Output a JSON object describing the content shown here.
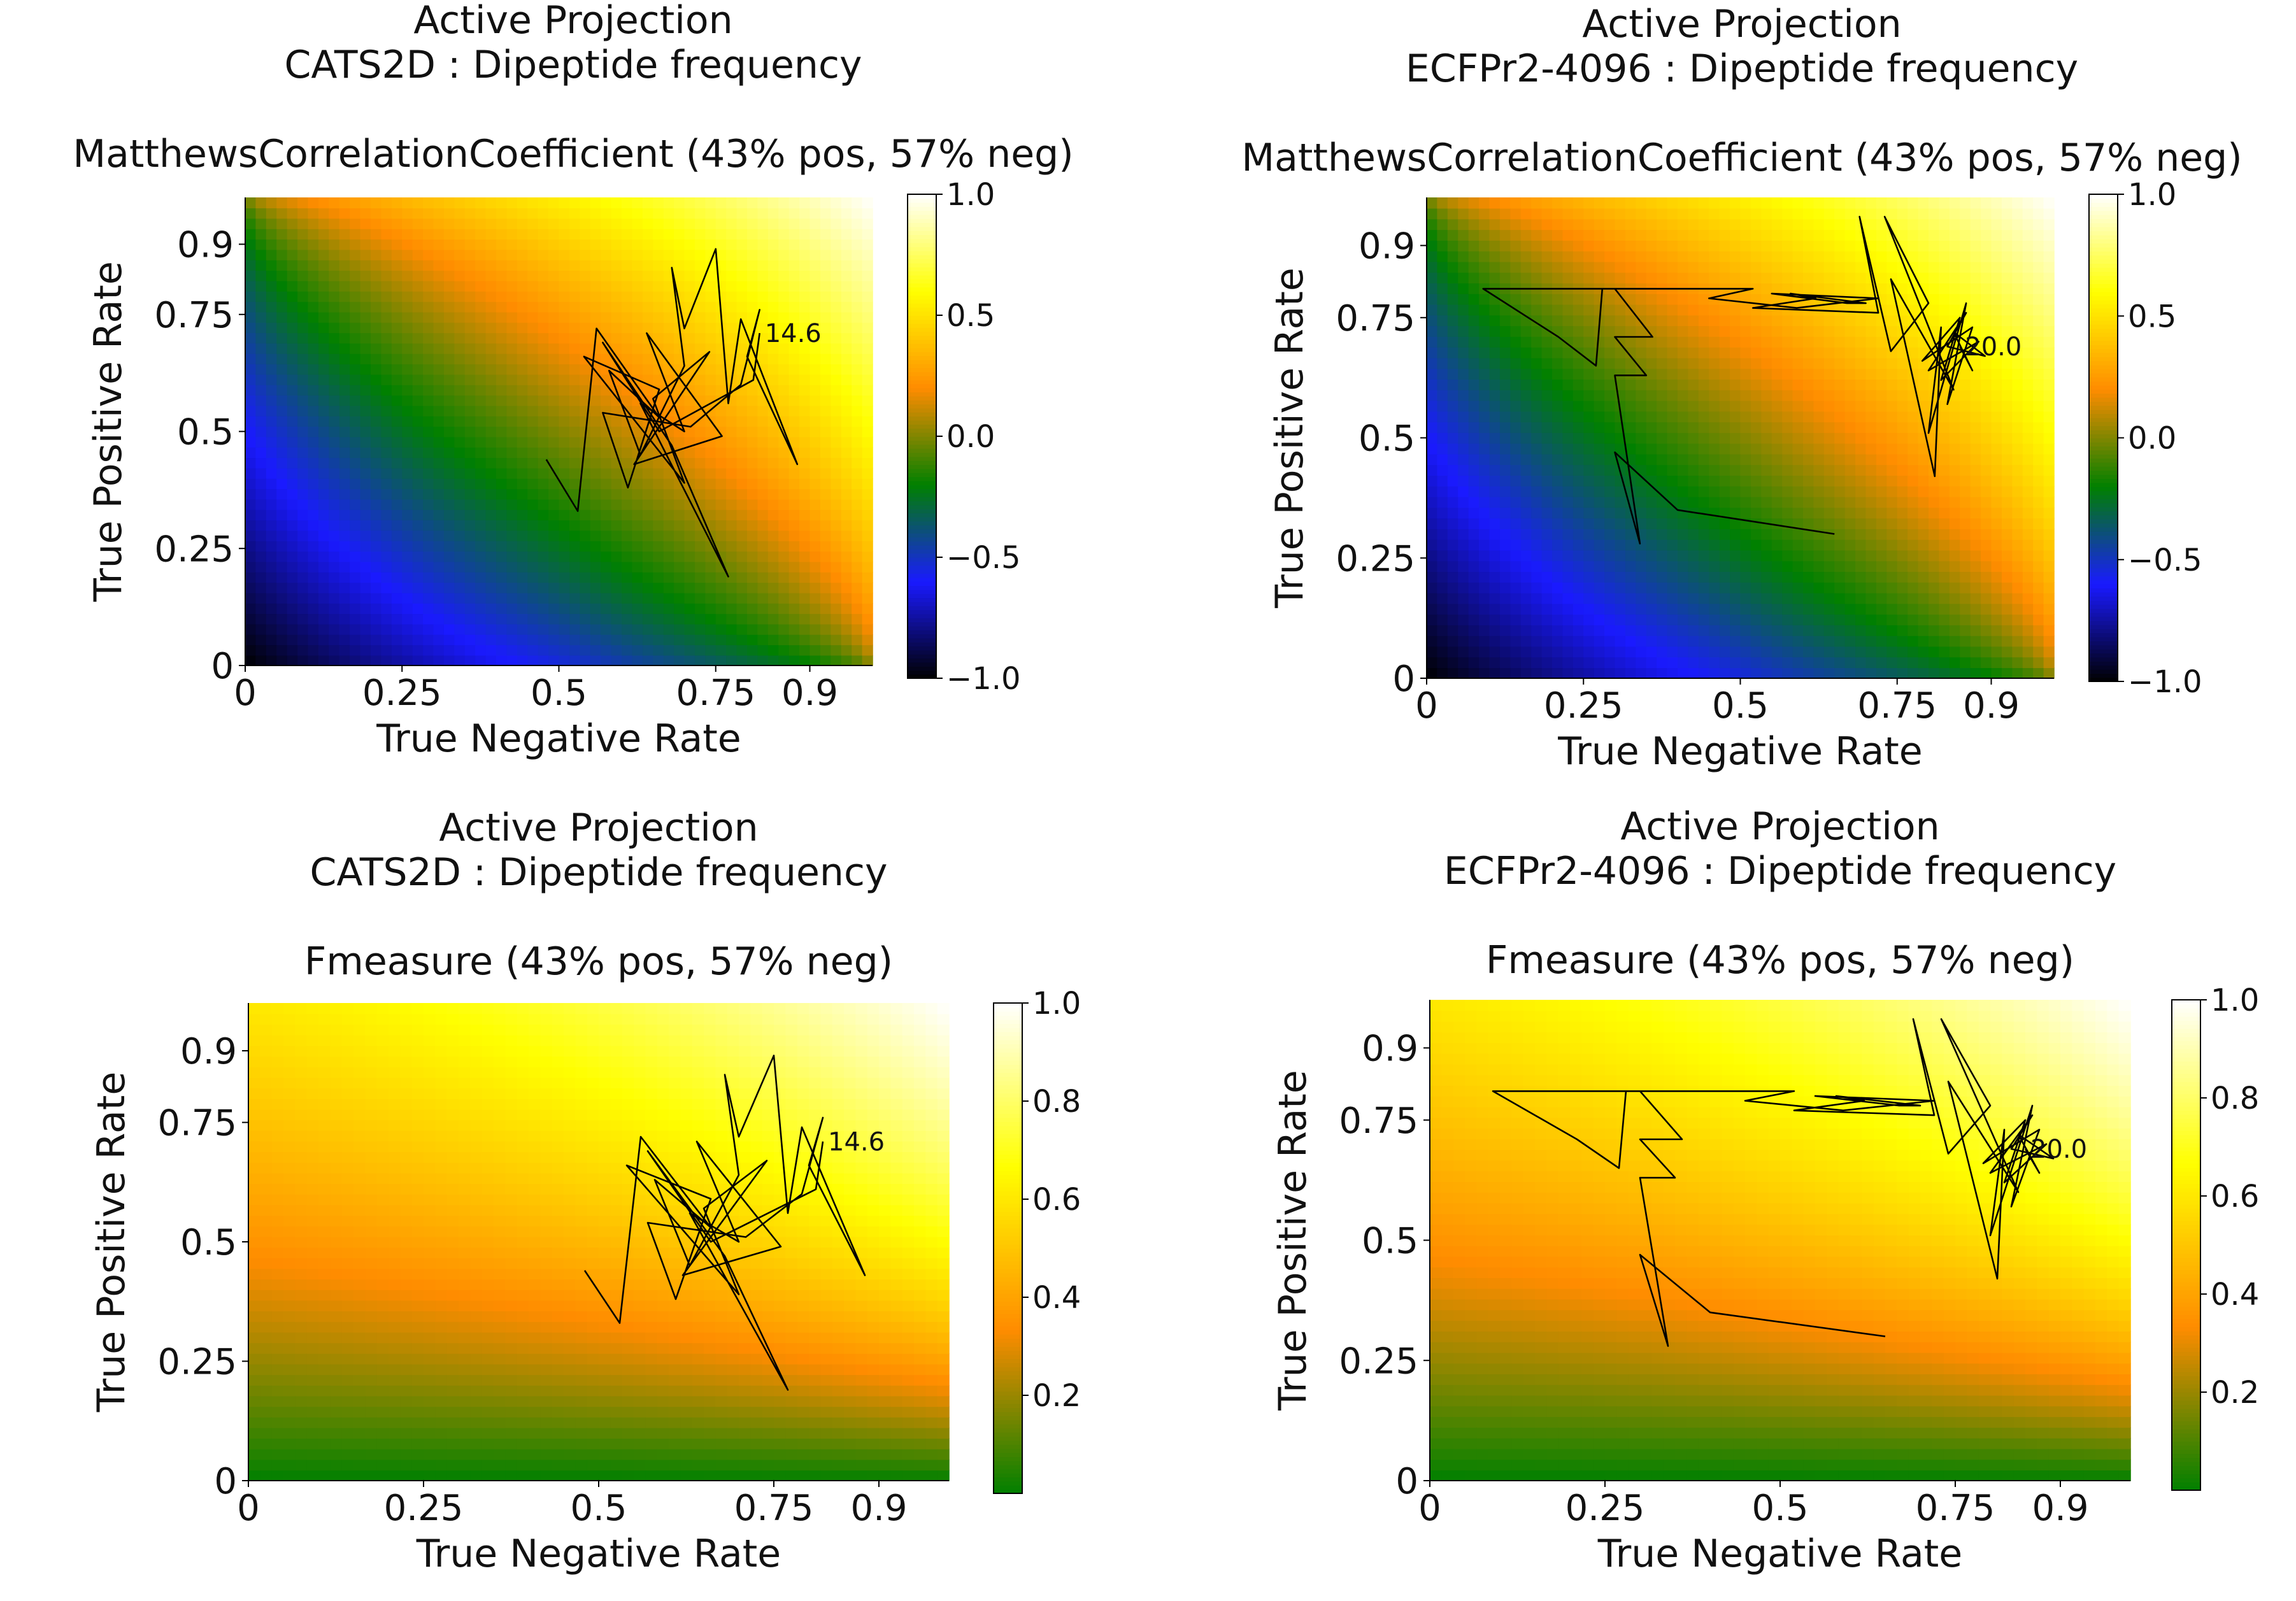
{
  "chart_data": [
    {
      "type": "heatmap",
      "id": "p1",
      "metric": "mcc",
      "title_lines": [
        "Active Projection",
        "CATS2D : Dipeptide frequency"
      ],
      "subtitle": "MatthewsCorrelationCoefficient (43% pos, 57% neg)",
      "xlabel": "True Negative Rate",
      "ylabel": "True Positive Rate",
      "xlim": [
        0,
        1
      ],
      "ylim": [
        0,
        1
      ],
      "xticks": [
        0,
        0.25,
        0.5,
        0.75,
        0.9
      ],
      "xtick_labels": [
        "0",
        "0.25",
        "0.5",
        "0.75",
        "0.9"
      ],
      "yticks": [
        0,
        0.25,
        0.5,
        0.75,
        0.9
      ],
      "ytick_labels": [
        "0",
        "0.25",
        "0.5",
        "0.75",
        "0.9"
      ],
      "colorbar": {
        "min": -1.0,
        "max": 1.0,
        "ticks": [
          -1.0,
          -0.5,
          0.0,
          0.5,
          1.0
        ],
        "tick_labels": [
          "−1.0",
          "−0.5",
          "0.0",
          "0.5",
          "1.0"
        ]
      },
      "colormap": [
        "#000000",
        "#1a1aff",
        "#008000",
        "#ff8c00",
        "#ffff00",
        "#ffffff"
      ],
      "trajectory_end_label": "14.6",
      "trajectory": [
        [
          0.48,
          0.44
        ],
        [
          0.53,
          0.33
        ],
        [
          0.56,
          0.72
        ],
        [
          0.66,
          0.53
        ],
        [
          0.58,
          0.63
        ],
        [
          0.63,
          0.45
        ],
        [
          0.7,
          0.64
        ],
        [
          0.68,
          0.85
        ],
        [
          0.7,
          0.72
        ],
        [
          0.75,
          0.89
        ],
        [
          0.77,
          0.56
        ],
        [
          0.79,
          0.74
        ],
        [
          0.88,
          0.43
        ],
        [
          0.8,
          0.66
        ],
        [
          0.82,
          0.76
        ],
        [
          0.79,
          0.6
        ],
        [
          0.71,
          0.51
        ],
        [
          0.57,
          0.54
        ],
        [
          0.61,
          0.38
        ],
        [
          0.66,
          0.59
        ],
        [
          0.54,
          0.66
        ],
        [
          0.7,
          0.39
        ],
        [
          0.65,
          0.57
        ],
        [
          0.74,
          0.67
        ],
        [
          0.62,
          0.43
        ],
        [
          0.76,
          0.49
        ],
        [
          0.64,
          0.71
        ],
        [
          0.7,
          0.5
        ],
        [
          0.63,
          0.56
        ],
        [
          0.77,
          0.19
        ],
        [
          0.68,
          0.47
        ],
        [
          0.57,
          0.69
        ],
        [
          0.66,
          0.5
        ],
        [
          0.81,
          0.61
        ],
        [
          0.82,
          0.71
        ]
      ]
    },
    {
      "type": "heatmap",
      "id": "p2",
      "metric": "mcc",
      "title_lines": [
        "Active Projection",
        "ECFPr2-4096 : Dipeptide frequency"
      ],
      "subtitle": "MatthewsCorrelationCoefficient (43% pos, 57% neg)",
      "xlabel": "True Negative Rate",
      "ylabel": "True Positive Rate",
      "xlim": [
        0,
        1
      ],
      "ylim": [
        0,
        1
      ],
      "xticks": [
        0,
        0.25,
        0.5,
        0.75,
        0.9
      ],
      "xtick_labels": [
        "0",
        "0.25",
        "0.5",
        "0.75",
        "0.9"
      ],
      "yticks": [
        0,
        0.25,
        0.5,
        0.75,
        0.9
      ],
      "ytick_labels": [
        "0",
        "0.25",
        "0.5",
        "0.75",
        "0.9"
      ],
      "colorbar": {
        "min": -1.0,
        "max": 1.0,
        "ticks": [
          -1.0,
          -0.5,
          0.0,
          0.5,
          1.0
        ],
        "tick_labels": [
          "−1.0",
          "−0.5",
          "0.0",
          "0.5",
          "1.0"
        ]
      },
      "colormap": [
        "#000000",
        "#1a1aff",
        "#008000",
        "#ff8c00",
        "#ffff00",
        "#ffffff"
      ],
      "trajectory_end_label": "20.0",
      "trajectory": [
        [
          0.65,
          0.3
        ],
        [
          0.4,
          0.35
        ],
        [
          0.3,
          0.47
        ],
        [
          0.34,
          0.28
        ],
        [
          0.3,
          0.63
        ],
        [
          0.35,
          0.63
        ],
        [
          0.3,
          0.71
        ],
        [
          0.36,
          0.71
        ],
        [
          0.3,
          0.81
        ],
        [
          0.09,
          0.81
        ],
        [
          0.21,
          0.71
        ],
        [
          0.27,
          0.65
        ],
        [
          0.28,
          0.81
        ],
        [
          0.52,
          0.81
        ],
        [
          0.45,
          0.79
        ],
        [
          0.59,
          0.77
        ],
        [
          0.72,
          0.79
        ],
        [
          0.55,
          0.8
        ],
        [
          0.67,
          0.78
        ],
        [
          0.7,
          0.78
        ],
        [
          0.58,
          0.8
        ],
        [
          0.62,
          0.79
        ],
        [
          0.52,
          0.77
        ],
        [
          0.72,
          0.76
        ],
        [
          0.69,
          0.96
        ],
        [
          0.74,
          0.68
        ],
        [
          0.8,
          0.78
        ],
        [
          0.73,
          0.96
        ],
        [
          0.84,
          0.6
        ],
        [
          0.74,
          0.83
        ],
        [
          0.81,
          0.42
        ],
        [
          0.82,
          0.73
        ],
        [
          0.8,
          0.51
        ],
        [
          0.86,
          0.78
        ],
        [
          0.83,
          0.57
        ],
        [
          0.87,
          0.73
        ],
        [
          0.79,
          0.66
        ],
        [
          0.85,
          0.75
        ],
        [
          0.82,
          0.62
        ],
        [
          0.88,
          0.7
        ],
        [
          0.8,
          0.64
        ],
        [
          0.86,
          0.76
        ],
        [
          0.83,
          0.69
        ],
        [
          0.89,
          0.67
        ],
        [
          0.84,
          0.72
        ],
        [
          0.87,
          0.64
        ],
        [
          0.85,
          0.69
        ]
      ]
    },
    {
      "type": "heatmap",
      "id": "p3",
      "metric": "f1",
      "title_lines": [
        "Active Projection",
        "CATS2D : Dipeptide frequency"
      ],
      "subtitle": "Fmeasure (43% pos, 57% neg)",
      "xlabel": "True Negative Rate",
      "ylabel": "True Positive Rate",
      "xlim": [
        0,
        1
      ],
      "ylim": [
        0,
        1
      ],
      "xticks": [
        0,
        0.25,
        0.5,
        0.75,
        0.9
      ],
      "xtick_labels": [
        "0",
        "0.25",
        "0.5",
        "0.75",
        "0.9"
      ],
      "yticks": [
        0,
        0.25,
        0.5,
        0.75,
        0.9
      ],
      "ytick_labels": [
        "0",
        "0.25",
        "0.5",
        "0.75",
        "0.9"
      ],
      "colorbar": {
        "min": 0.0,
        "max": 1.0,
        "ticks": [
          0.2,
          0.4,
          0.6,
          0.8,
          1.0
        ],
        "tick_labels": [
          "0.2",
          "0.4",
          "0.6",
          "0.8",
          "1.0"
        ]
      },
      "colormap": [
        "#008000",
        "#ff8c00",
        "#ffff00",
        "#ffffff"
      ],
      "trajectory_end_label": "14.6",
      "trajectory": [
        [
          0.48,
          0.44
        ],
        [
          0.53,
          0.33
        ],
        [
          0.56,
          0.72
        ],
        [
          0.66,
          0.53
        ],
        [
          0.58,
          0.63
        ],
        [
          0.63,
          0.45
        ],
        [
          0.7,
          0.64
        ],
        [
          0.68,
          0.85
        ],
        [
          0.7,
          0.72
        ],
        [
          0.75,
          0.89
        ],
        [
          0.77,
          0.56
        ],
        [
          0.79,
          0.74
        ],
        [
          0.88,
          0.43
        ],
        [
          0.8,
          0.66
        ],
        [
          0.82,
          0.76
        ],
        [
          0.79,
          0.6
        ],
        [
          0.71,
          0.51
        ],
        [
          0.57,
          0.54
        ],
        [
          0.61,
          0.38
        ],
        [
          0.66,
          0.59
        ],
        [
          0.54,
          0.66
        ],
        [
          0.7,
          0.39
        ],
        [
          0.65,
          0.57
        ],
        [
          0.74,
          0.67
        ],
        [
          0.62,
          0.43
        ],
        [
          0.76,
          0.49
        ],
        [
          0.64,
          0.71
        ],
        [
          0.7,
          0.5
        ],
        [
          0.63,
          0.56
        ],
        [
          0.77,
          0.19
        ],
        [
          0.68,
          0.47
        ],
        [
          0.57,
          0.69
        ],
        [
          0.66,
          0.5
        ],
        [
          0.81,
          0.61
        ],
        [
          0.82,
          0.71
        ]
      ]
    },
    {
      "type": "heatmap",
      "id": "p4",
      "metric": "f1",
      "title_lines": [
        "Active Projection",
        "ECFPr2-4096 : Dipeptide frequency"
      ],
      "subtitle": "Fmeasure (43% pos, 57% neg)",
      "xlabel": "True Negative Rate",
      "ylabel": "True Positive Rate",
      "xlim": [
        0,
        1
      ],
      "ylim": [
        0,
        1
      ],
      "xticks": [
        0,
        0.25,
        0.5,
        0.75,
        0.9
      ],
      "xtick_labels": [
        "0",
        "0.25",
        "0.5",
        "0.75",
        "0.9"
      ],
      "yticks": [
        0,
        0.25,
        0.5,
        0.75,
        0.9
      ],
      "ytick_labels": [
        "0",
        "0.25",
        "0.5",
        "0.75",
        "0.9"
      ],
      "colorbar": {
        "min": 0.0,
        "max": 1.0,
        "ticks": [
          0.2,
          0.4,
          0.6,
          0.8,
          1.0
        ],
        "tick_labels": [
          "0.2",
          "0.4",
          "0.6",
          "0.8",
          "1.0"
        ]
      },
      "colormap": [
        "#008000",
        "#ff8c00",
        "#ffff00",
        "#ffffff"
      ],
      "trajectory_end_label": "20.0",
      "trajectory": [
        [
          0.65,
          0.3
        ],
        [
          0.4,
          0.35
        ],
        [
          0.3,
          0.47
        ],
        [
          0.34,
          0.28
        ],
        [
          0.3,
          0.63
        ],
        [
          0.35,
          0.63
        ],
        [
          0.3,
          0.71
        ],
        [
          0.36,
          0.71
        ],
        [
          0.3,
          0.81
        ],
        [
          0.09,
          0.81
        ],
        [
          0.21,
          0.71
        ],
        [
          0.27,
          0.65
        ],
        [
          0.28,
          0.81
        ],
        [
          0.52,
          0.81
        ],
        [
          0.45,
          0.79
        ],
        [
          0.59,
          0.77
        ],
        [
          0.72,
          0.79
        ],
        [
          0.55,
          0.8
        ],
        [
          0.67,
          0.78
        ],
        [
          0.7,
          0.78
        ],
        [
          0.58,
          0.8
        ],
        [
          0.62,
          0.79
        ],
        [
          0.52,
          0.77
        ],
        [
          0.72,
          0.76
        ],
        [
          0.69,
          0.96
        ],
        [
          0.74,
          0.68
        ],
        [
          0.8,
          0.78
        ],
        [
          0.73,
          0.96
        ],
        [
          0.84,
          0.6
        ],
        [
          0.74,
          0.83
        ],
        [
          0.81,
          0.42
        ],
        [
          0.82,
          0.73
        ],
        [
          0.8,
          0.51
        ],
        [
          0.86,
          0.78
        ],
        [
          0.83,
          0.57
        ],
        [
          0.87,
          0.73
        ],
        [
          0.79,
          0.66
        ],
        [
          0.85,
          0.75
        ],
        [
          0.82,
          0.62
        ],
        [
          0.88,
          0.7
        ],
        [
          0.8,
          0.64
        ],
        [
          0.86,
          0.76
        ],
        [
          0.83,
          0.69
        ],
        [
          0.89,
          0.67
        ],
        [
          0.84,
          0.72
        ],
        [
          0.87,
          0.64
        ],
        [
          0.85,
          0.69
        ]
      ]
    }
  ]
}
